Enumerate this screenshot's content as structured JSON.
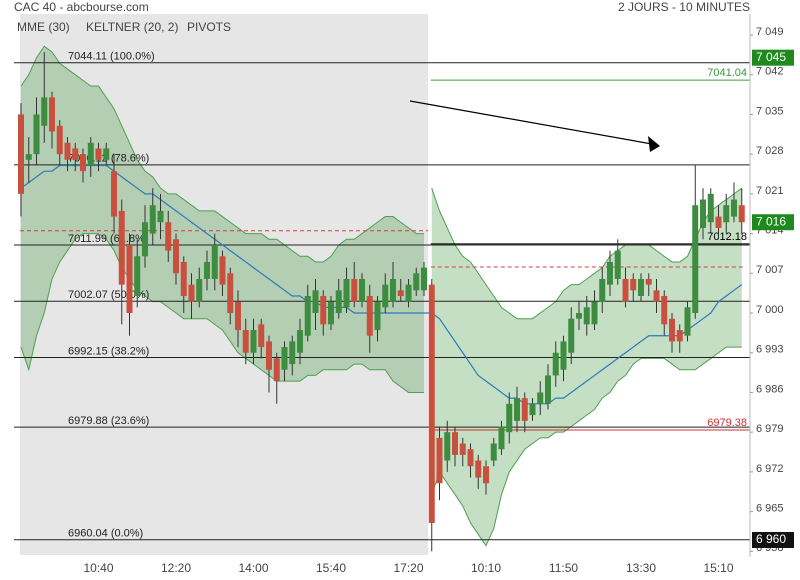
{
  "header": {
    "title": "CAC 40 - abcbourse.com",
    "period": "2 JOURS - 10 MINUTES"
  },
  "chart_data": {
    "type": "candlestick",
    "categories": [
      null,
      null,
      null,
      null,
      null,
      null,
      null,
      null,
      null,
      null,
      "10:40",
      null,
      null,
      null,
      null,
      null,
      null,
      null,
      null,
      null,
      "12:20",
      null,
      null,
      null,
      null,
      null,
      null,
      null,
      null,
      null,
      "14:00",
      null,
      null,
      null,
      null,
      null,
      null,
      null,
      null,
      null,
      "15:40",
      null,
      null,
      null,
      null,
      null,
      null,
      null,
      null,
      null,
      "17:20",
      null,
      null,
      null,
      null,
      null,
      null,
      null,
      null,
      null,
      "10:10",
      null,
      null,
      null,
      null,
      null,
      null,
      null,
      null,
      null,
      "11:50",
      null,
      null,
      null,
      null,
      null,
      null,
      null,
      null,
      null,
      "13:30",
      null,
      null,
      null,
      null,
      null,
      null,
      null,
      null,
      null,
      "15:10",
      null,
      null,
      null
    ],
    "open": [
      7035,
      7027,
      7028,
      7033,
      7038,
      7033,
      7030,
      7029,
      7028,
      7026,
      7029,
      7027,
      7025,
      7018,
      7012,
      7003,
      7010,
      7014,
      7016,
      7016,
      7013,
      7009,
      7005,
      7002,
      7006,
      7006,
      7010,
      7007,
      7002,
      6997,
      6993,
      6998,
      6995,
      6992,
      6990,
      6991,
      6993,
      6996,
      7000,
      7003,
      6998,
      7000,
      7001,
      7006,
      7002,
      7003,
      6997,
      7001,
      7002,
      7004,
      7002,
      7004,
      7004,
      7005,
      6978,
      6974,
      6979,
      6977,
      6976,
      6974,
      6973,
      6974,
      6976,
      6979,
      6981,
      6985,
      6982,
      6984,
      6984,
      6989,
      6990,
      6993,
      6999,
      6998,
      6998,
      7002,
      7005,
      7006,
      7006,
      7006,
      7003,
      7006,
      7004,
      7003,
      6999,
      6997,
      6996,
      7000,
      7015,
      7016,
      7017,
      7016,
      7017,
      7019
    ],
    "high": [
      7037,
      7031,
      7038,
      7046,
      7039,
      7034,
      7031,
      7030,
      7029,
      7031,
      7030,
      7030,
      7028,
      7020,
      7014,
      7013,
      7019,
      7022,
      7021,
      7018,
      7014,
      7010,
      7007,
      7008,
      7011,
      7014,
      7011,
      7008,
      7004,
      6999,
      6999,
      6999,
      6996,
      6993,
      6995,
      6996,
      6999,
      7005,
      7006,
      7004,
      7003,
      7006,
      7008,
      7009,
      7007,
      7005,
      7003,
      7007,
      7009,
      7006,
      7006,
      7008,
      7009,
      7006,
      6980,
      6981,
      6980,
      6978,
      6977,
      6975,
      6974,
      6978,
      6981,
      6986,
      6987,
      6986,
      6985,
      6988,
      6991,
      6995,
      6996,
      7001,
      7002,
      7003,
      7004,
      7008,
      7011,
      7013,
      7008,
      7007,
      7007,
      7007,
      7006,
      7004,
      7000,
      6998,
      7002,
      7026,
      7022,
      7022,
      7019,
      7021,
      7023,
      7022
    ],
    "low": [
      7017,
      7023,
      7026,
      7030,
      7029,
      7026,
      7025,
      7025,
      7023,
      7024,
      7025,
      7026,
      7014,
      6998,
      6996,
      7001,
      7008,
      7012,
      7013,
      7009,
      7005,
      7000,
      6999,
      7001,
      7004,
      7004,
      7003,
      6998,
      6994,
      6991,
      6991,
      6992,
      6986,
      6984,
      6988,
      6989,
      6991,
      6995,
      6997,
      6996,
      6997,
      6999,
      7000,
      7001,
      7001,
      6993,
      6995,
      7000,
      7001,
      7002,
      7001,
      7003,
      7003,
      6958,
      6967,
      6972,
      6973,
      6973,
      6971,
      6969,
      6968,
      6973,
      6975,
      6977,
      6979,
      6979,
      6981,
      6982,
      6983,
      6987,
      6988,
      6991,
      6997,
      6996,
      6997,
      7000,
      7003,
      7005,
      7001,
      7002,
      7002,
      7003,
      7000,
      6996,
      6993,
      6993,
      6995,
      6999,
      7013,
      7014,
      7013,
      7014,
      7016,
      7014
    ],
    "close": [
      7021,
      7028,
      7035,
      7038,
      7032,
      7028,
      7027,
      7027,
      7025,
      7030,
      7027,
      7029,
      7017,
      7005,
      7000,
      7010,
      7016,
      7019,
      7018,
      7011,
      7007,
      7003,
      7002,
      7006,
      7009,
      7012,
      7005,
      7000,
      6997,
      6993,
      6997,
      6994,
      6990,
      6988,
      6994,
      6995,
      6997,
      7003,
      7004,
      6998,
      7002,
      7004,
      7006,
      7002,
      7006,
      6996,
      7002,
      7005,
      7006,
      7003,
      7005,
      7007,
      7008,
      6963,
      6970,
      6979,
      6975,
      6975,
      6973,
      6971,
      6970,
      6977,
      6980,
      6984,
      6985,
      6981,
      6984,
      6986,
      6989,
      6993,
      6995,
      6999,
      7000,
      7001,
      7002,
      7006,
      7009,
      7011,
      7002,
      7004,
      7006,
      7005,
      7002,
      6998,
      6995,
      6995,
      7001,
      7019,
      7020,
      7021,
      7015,
      7019,
      7020,
      7016
    ],
    "up_color": "#3d8c40",
    "down_color": "#c9503f",
    "ylim": [
      6957,
      7052.7
    ],
    "yticks": [
      {
        "value": 6958,
        "label": "6 958"
      },
      {
        "value": 6965,
        "label": "6 965"
      },
      {
        "value": 6972,
        "label": "6 972"
      },
      {
        "value": 6979,
        "label": "6 979"
      },
      {
        "value": 6986,
        "label": "6 986"
      },
      {
        "value": 6993,
        "label": "6 993"
      },
      {
        "value": 7000,
        "label": "7 000"
      },
      {
        "value": 7007,
        "label": "7 007"
      },
      {
        "value": 7014,
        "label": "7 014"
      },
      {
        "value": 7021,
        "label": "7 021"
      },
      {
        "value": 7028,
        "label": "7 028"
      },
      {
        "value": 7035,
        "label": "7 035"
      },
      {
        "value": 7042,
        "label": "7 042"
      },
      {
        "value": 7049,
        "label": "7 049"
      }
    ],
    "series": [
      {
        "name": "MME (30)",
        "color": "#2b7bb9",
        "values": [
          7022,
          7023,
          7024,
          7025,
          7025,
          7026,
          7026,
          7026,
          7026,
          7026,
          7026,
          7026,
          7025,
          7024,
          7023,
          7022,
          7021,
          7021,
          7020,
          7019,
          7018,
          7017,
          7016,
          7015,
          7014,
          7013,
          7012,
          7011,
          7010,
          7009,
          7008,
          7007,
          7006,
          7005,
          7004,
          7003,
          7003,
          7002,
          7002,
          7001,
          7001,
          7001,
          7001,
          7000,
          7000,
          7000,
          7000,
          7000,
          7000,
          7000,
          7000,
          7000,
          7000,
          7000,
          6999,
          6997,
          6995,
          6993,
          6991,
          6989,
          6988,
          6987,
          6986,
          6985,
          6985,
          6984,
          6984,
          6984,
          6984,
          6985,
          6985,
          6986,
          6987,
          6988,
          6989,
          6990,
          6991,
          6992,
          6993,
          6994,
          6995,
          6996,
          6996,
          6996,
          6996,
          6996,
          6997,
          6998,
          6999,
          7000,
          7002,
          7003,
          7004,
          7005
        ]
      }
    ],
    "keltner": {
      "name": "KELTNER (20, 2)",
      "color": "#4f9f4f",
      "upper": [
        7040,
        7042,
        7045,
        7047,
        7046,
        7044,
        7043,
        7042,
        7041,
        7040,
        7040,
        7038,
        7036,
        7033,
        7030,
        7027,
        7025,
        7024,
        7022,
        7021,
        7021,
        7020,
        7019,
        7018,
        7018,
        7018,
        7017,
        7016,
        7015,
        7014,
        7014,
        7014,
        7013,
        7013,
        7012,
        7011,
        7010,
        7010,
        7009,
        7009,
        7010,
        7012,
        7013,
        7013,
        7014,
        7015,
        7016,
        7017,
        7017,
        7016,
        7015,
        7014,
        7014,
        7022,
        7018,
        7015,
        7012,
        7010,
        7009,
        7007,
        7005,
        7003,
        7001,
        7000,
        6999,
        6999,
        6999,
        7000,
        7001,
        7002,
        7004,
        7005,
        7005,
        7006,
        7007,
        7008,
        7010,
        7011,
        7012,
        7012,
        7012,
        7012,
        7011,
        7010,
        7009,
        7009,
        7010,
        7013,
        7016,
        7018,
        7019,
        7020,
        7021,
        7022
      ],
      "lower": [
        6994,
        6990,
        6996,
        7000,
        7006,
        7009,
        7011,
        7013,
        7014,
        7014,
        7014,
        7013,
        7011,
        7008,
        7006,
        7004,
        7003,
        7002,
        7002,
        7001,
        7000,
        6999,
        6999,
        6999,
        6999,
        6998,
        6997,
        6995,
        6993,
        6992,
        6991,
        6990,
        6989,
        6988,
        6988,
        6988,
        6988,
        6989,
        6989,
        6990,
        6990,
        6990,
        6990,
        6991,
        6991,
        6990,
        6990,
        6990,
        6988,
        6987,
        6986,
        6986,
        6986,
        6968,
        6972,
        6970,
        6968,
        6966,
        6963,
        6961,
        6959,
        6962,
        6968,
        6972,
        6974,
        6976,
        6977,
        6978,
        6978,
        6979,
        6979,
        6980,
        6981,
        6982,
        6983,
        6985,
        6986,
        6988,
        6989,
        6991,
        6992,
        6992,
        6992,
        6992,
        6991,
        6990,
        6990,
        6990,
        6991,
        6992,
        6993,
        6994,
        6994,
        6994
      ]
    },
    "pivots": {
      "name": "PIVOTS",
      "color": "#222222",
      "levels": [
        {
          "value": 7044.11,
          "label": "7044.11  (100.0%)"
        },
        {
          "value": 7026.12,
          "label": "7026.12  (78.6%)"
        },
        {
          "value": 7011.99,
          "label": "7011.99  (61.8%)"
        },
        {
          "value": 7002.07,
          "label": "7002.07  (50.0%)"
        },
        {
          "value": 6992.15,
          "label": "6992.15  (38.2%)"
        },
        {
          "value": 6979.88,
          "label": "6979.88  (23.6%)"
        },
        {
          "value": 6960.04,
          "label": "6960.04  (0.0%)"
        }
      ]
    },
    "levels": [
      {
        "value": 7041.04,
        "label": "7041.04",
        "color": "#3a9a3a"
      },
      {
        "value": 7012.18,
        "label": "7012.18",
        "color": "#000000"
      },
      {
        "value": 6979.38,
        "label": "6979.38",
        "color": "#d03030"
      }
    ],
    "dashed_levels": {
      "color": "#d04040",
      "values": [
        7014.5,
        7008.1
      ]
    },
    "price_tags": [
      {
        "value": 7045,
        "label": "7 045",
        "color": "#1e8a1e"
      },
      {
        "value": 7016,
        "label": "7 016",
        "color": "#1e8a1e"
      },
      {
        "value": 6960,
        "label": "6 960",
        "color": "#111111"
      }
    ]
  }
}
